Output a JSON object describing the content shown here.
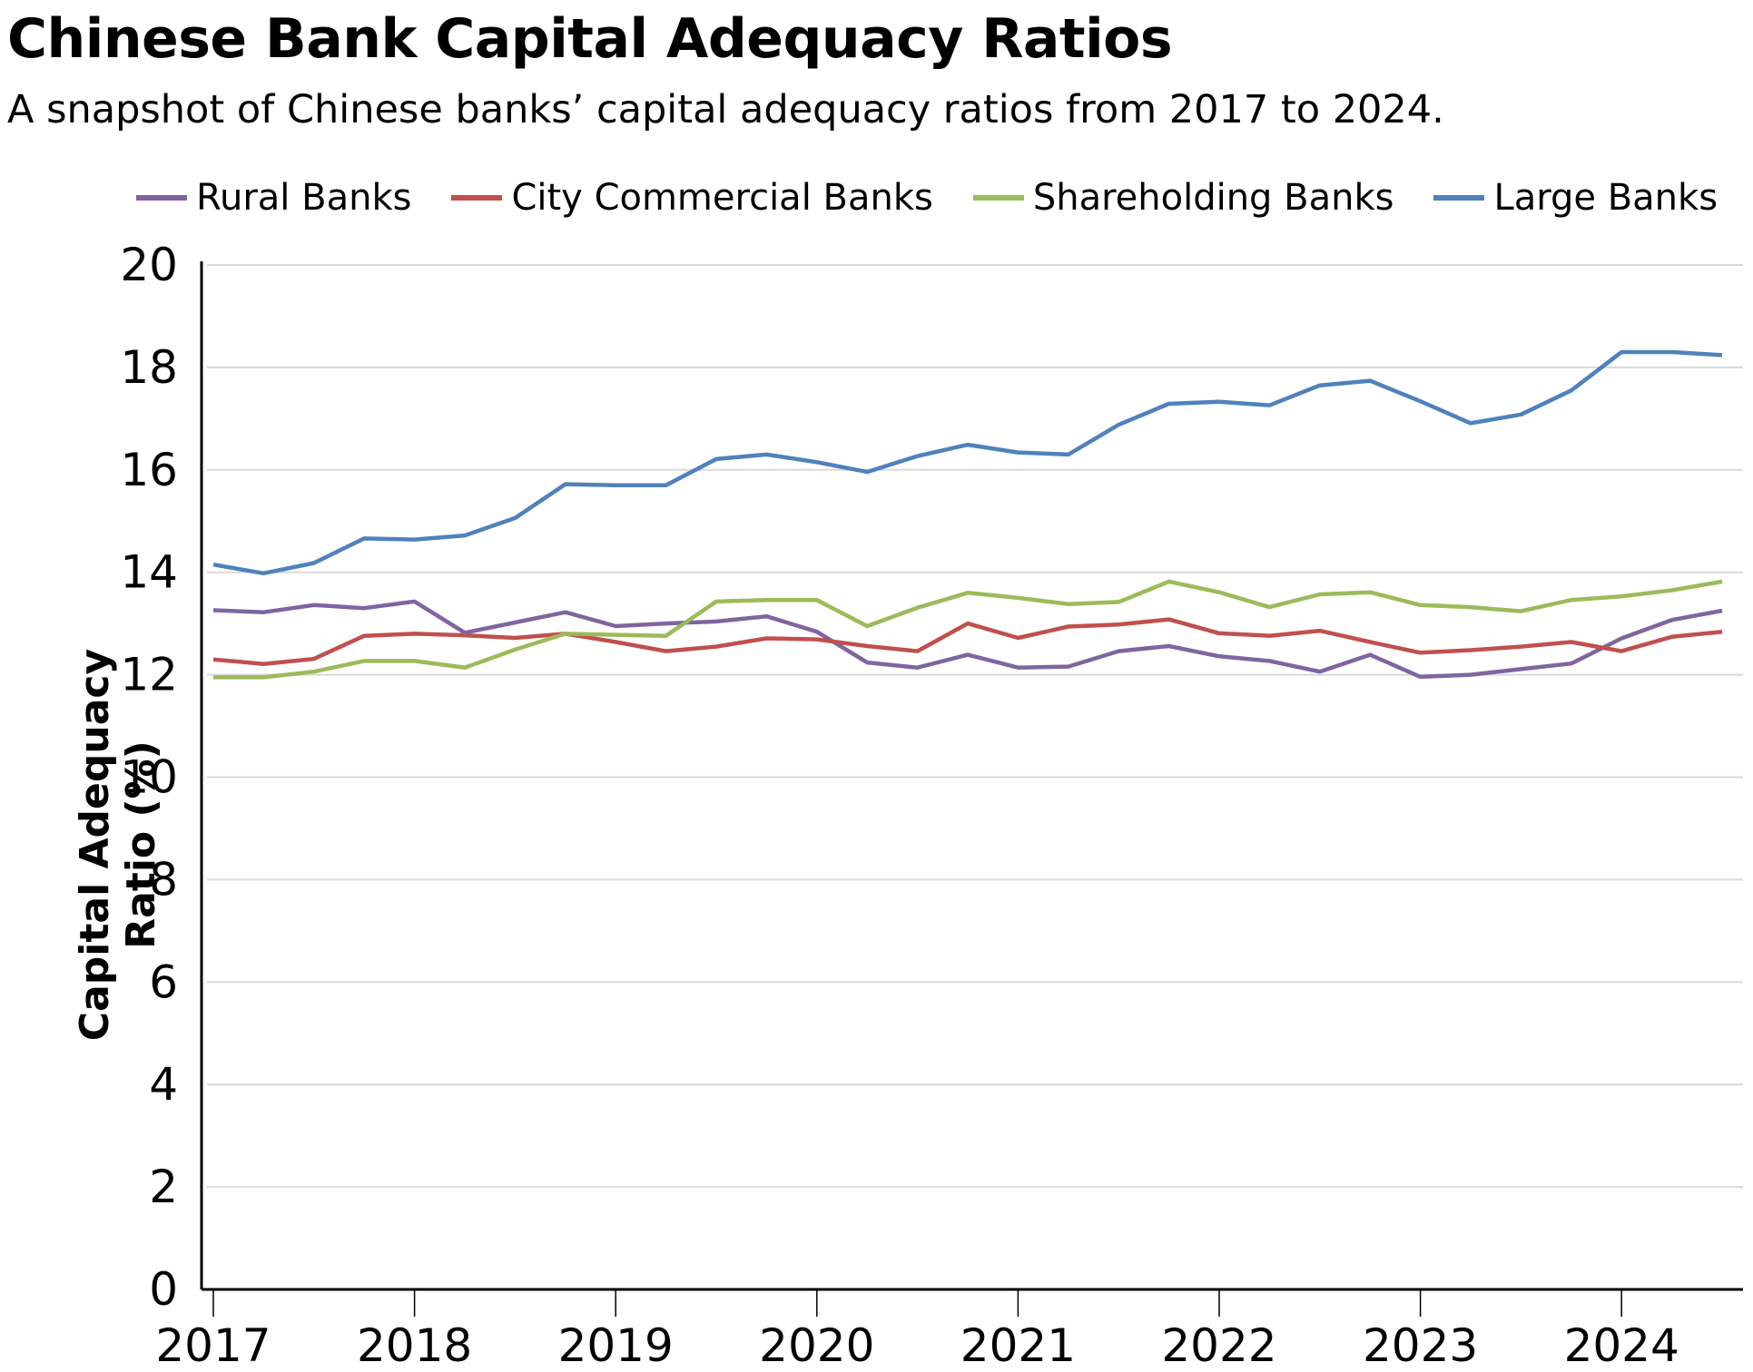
{
  "chart_data": {
    "type": "line",
    "title": "Chinese Bank Capital Adequacy Ratios",
    "subtitle": "A snapshot of Chinese banks’ capital adequacy ratios from 2017 to 2024.",
    "xlabel": "",
    "ylabel": "Capital Adequacy Ratio (%)",
    "ylim": [
      0,
      20
    ],
    "yticks": [
      "0",
      "2",
      "4",
      "6",
      "8",
      "10",
      "12",
      "14",
      "16",
      "18",
      "20"
    ],
    "xticks": [
      "2017",
      "2018",
      "2019",
      "2020",
      "2021",
      "2022",
      "2023",
      "2024"
    ],
    "x": [
      "2017Q1",
      "2017Q2",
      "2017Q3",
      "2017Q4",
      "2018Q1",
      "2018Q2",
      "2018Q3",
      "2018Q4",
      "2019Q1",
      "2019Q2",
      "2019Q3",
      "2019Q4",
      "2020Q1",
      "2020Q2",
      "2020Q3",
      "2020Q4",
      "2021Q1",
      "2021Q2",
      "2021Q3",
      "2021Q4",
      "2022Q1",
      "2022Q2",
      "2022Q3",
      "2022Q4",
      "2023Q1",
      "2023Q2",
      "2023Q3",
      "2023Q4",
      "2024Q1",
      "2024Q2",
      "2024Q3"
    ],
    "grid": true,
    "legend_position": "top",
    "series": [
      {
        "name": "Rural Banks",
        "color": "#8064a2",
        "values": [
          13.26,
          13.22,
          13.36,
          13.3,
          13.43,
          12.82,
          13.02,
          13.22,
          12.95,
          13.0,
          13.04,
          13.14,
          12.84,
          12.24,
          12.14,
          12.39,
          12.14,
          12.16,
          12.46,
          12.56,
          12.36,
          12.27,
          12.06,
          12.39,
          11.96,
          12.0,
          12.11,
          12.22,
          12.71,
          13.07,
          13.25
        ]
      },
      {
        "name": "City Commercial Banks",
        "color": "#c0504d",
        "values": [
          12.3,
          12.21,
          12.31,
          12.76,
          12.8,
          12.77,
          12.72,
          12.8,
          12.64,
          12.46,
          12.55,
          12.71,
          12.69,
          12.56,
          12.46,
          13.0,
          12.72,
          12.94,
          12.98,
          13.08,
          12.81,
          12.76,
          12.86,
          12.64,
          12.43,
          12.48,
          12.55,
          12.64,
          12.46,
          12.74,
          12.84
        ]
      },
      {
        "name": "Shareholding Banks",
        "color": "#9bbb59",
        "values": [
          11.95,
          11.95,
          12.06,
          12.27,
          12.27,
          12.14,
          12.49,
          12.8,
          12.78,
          12.76,
          13.43,
          13.46,
          13.46,
          12.95,
          13.31,
          13.6,
          13.5,
          13.38,
          13.42,
          13.82,
          13.61,
          13.32,
          13.57,
          13.61,
          13.36,
          13.32,
          13.24,
          13.46,
          13.53,
          13.65,
          13.82
        ]
      },
      {
        "name": "Large Banks",
        "color": "#4f81bd",
        "values": [
          14.15,
          13.98,
          14.18,
          14.66,
          14.64,
          14.72,
          15.06,
          15.72,
          15.7,
          15.7,
          16.21,
          16.3,
          16.15,
          15.96,
          16.27,
          16.49,
          16.34,
          16.3,
          16.88,
          17.29,
          17.33,
          17.26,
          17.65,
          17.74,
          17.34,
          16.91,
          17.08,
          17.55,
          18.3,
          18.3,
          18.24
        ]
      }
    ]
  }
}
